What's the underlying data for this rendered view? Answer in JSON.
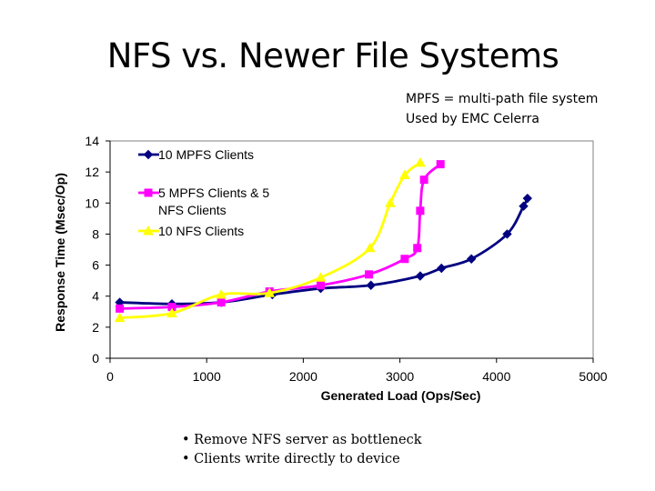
{
  "slide": {
    "title": "NFS vs. Newer File Systems",
    "note_lines": [
      "MPFS = multi-path file system",
      "Used by EMC Celerra"
    ],
    "bullets": [
      "• Remove NFS server as bottleneck",
      "• Clients write directly to device"
    ]
  },
  "chart_data": {
    "type": "line",
    "title": "",
    "xlabel": "Generated Load (Ops/Sec)",
    "ylabel": "Response Time (Msec/Op)",
    "xlim": [
      0,
      5000
    ],
    "ylim": [
      0,
      14
    ],
    "xticks": [
      0,
      1000,
      2000,
      3000,
      4000,
      5000
    ],
    "yticks": [
      0,
      2,
      4,
      6,
      8,
      10,
      12,
      14
    ],
    "grid": false,
    "legend_position": "top-left",
    "series": [
      {
        "name": "10 MPFS Clients",
        "color": "#000080",
        "marker": "diamond",
        "points": [
          [
            100,
            3.6
          ],
          [
            640,
            3.5
          ],
          [
            1150,
            3.6
          ],
          [
            1680,
            4.1
          ],
          [
            2180,
            4.5
          ],
          [
            2700,
            4.7
          ],
          [
            3210,
            5.3
          ],
          [
            3430,
            5.8
          ],
          [
            3740,
            6.4
          ],
          [
            4110,
            8.0
          ],
          [
            4280,
            9.8
          ],
          [
            4320,
            10.3
          ]
        ]
      },
      {
        "name": "5 MPFS Clients & 5 NFS Clients",
        "color": "#FF00FF",
        "marker": "square",
        "points": [
          [
            100,
            3.2
          ],
          [
            640,
            3.3
          ],
          [
            1150,
            3.6
          ],
          [
            1650,
            4.3
          ],
          [
            2180,
            4.7
          ],
          [
            2680,
            5.4
          ],
          [
            3050,
            6.4
          ],
          [
            3180,
            7.1
          ],
          [
            3210,
            9.5
          ],
          [
            3250,
            11.5
          ],
          [
            3420,
            12.5
          ]
        ]
      },
      {
        "name": "10 NFS Clients",
        "color": "#FFFF00",
        "marker": "triangle",
        "points": [
          [
            100,
            2.6
          ],
          [
            640,
            2.9
          ],
          [
            1150,
            4.1
          ],
          [
            1650,
            4.2
          ],
          [
            2180,
            5.2
          ],
          [
            2690,
            7.1
          ],
          [
            2900,
            10.0
          ],
          [
            3050,
            11.8
          ],
          [
            3210,
            12.6
          ]
        ]
      }
    ]
  }
}
